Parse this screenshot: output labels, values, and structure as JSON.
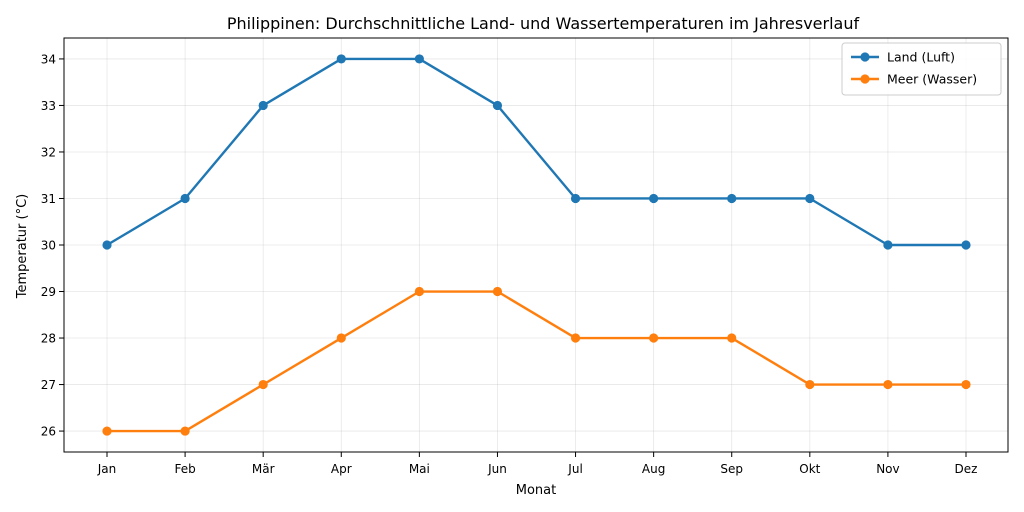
{
  "chart_data": {
    "type": "line",
    "title": "Philippinen: Durchschnittliche Land- und Wassertemperaturen im Jahresverlauf",
    "xlabel": "Monat",
    "ylabel": "Temperatur (°C)",
    "categories": [
      "Jan",
      "Feb",
      "Mär",
      "Apr",
      "Mai",
      "Jun",
      "Jul",
      "Aug",
      "Sep",
      "Okt",
      "Nov",
      "Dez"
    ],
    "yticks": [
      26,
      27,
      28,
      29,
      30,
      31,
      32,
      33,
      34
    ],
    "ylim": [
      25.55,
      34.45
    ],
    "grid": true,
    "legend_position": "top-right",
    "series": [
      {
        "name": "Land (Luft)",
        "color": "#1f77b4",
        "values": [
          30,
          31,
          33,
          34,
          34,
          33,
          31,
          31,
          31,
          31,
          30,
          30
        ]
      },
      {
        "name": "Meer (Wasser)",
        "color": "#ff7f0e",
        "values": [
          26,
          26,
          27,
          28,
          29,
          29,
          28,
          28,
          28,
          27,
          27,
          27
        ]
      }
    ]
  }
}
